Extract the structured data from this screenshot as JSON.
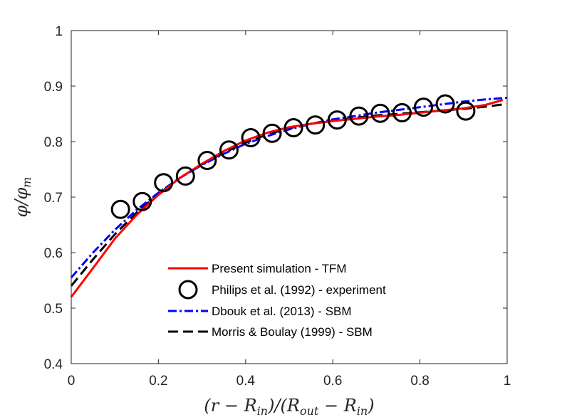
{
  "chart_data": {
    "type": "line",
    "title": "",
    "xlabel": "(r − R_in)/(R_out − R_in)",
    "ylabel": "φ/φ_m",
    "xlim": [
      0,
      1
    ],
    "ylim": [
      0.4,
      1
    ],
    "grid": false,
    "legend_position": "bottom-center",
    "x_ticks": [
      "0",
      "0.2",
      "0.4",
      "0.6",
      "0.8",
      "1"
    ],
    "y_ticks": [
      "0.4",
      "0.5",
      "0.6",
      "0.7",
      "0.8",
      "0.9",
      "1"
    ],
    "series": [
      {
        "name": "Present simulation - TFM",
        "style": "solid",
        "color": "#ff0000",
        "x": [
          0,
          0.05,
          0.1,
          0.15,
          0.2,
          0.25,
          0.3,
          0.35,
          0.4,
          0.45,
          0.5,
          0.55,
          0.6,
          0.65,
          0.7,
          0.75,
          0.8,
          0.85,
          0.9,
          0.95,
          0.99
        ],
        "y": [
          0.52,
          0.572,
          0.625,
          0.668,
          0.704,
          0.735,
          0.76,
          0.783,
          0.802,
          0.816,
          0.826,
          0.832,
          0.837,
          0.841,
          0.845,
          0.848,
          0.852,
          0.856,
          0.86,
          0.866,
          0.875
        ]
      },
      {
        "name": "Philips et al. (1992) - experiment",
        "style": "markers",
        "color": "#000000",
        "marker": "circle",
        "x": [
          0.113,
          0.163,
          0.212,
          0.262,
          0.312,
          0.362,
          0.412,
          0.461,
          0.51,
          0.56,
          0.61,
          0.66,
          0.709,
          0.759,
          0.808,
          0.858,
          0.905
        ],
        "y": [
          0.678,
          0.692,
          0.726,
          0.738,
          0.766,
          0.785,
          0.807,
          0.815,
          0.825,
          0.83,
          0.839,
          0.846,
          0.851,
          0.852,
          0.862,
          0.868,
          0.855
        ]
      },
      {
        "name": "Dbouk et al. (2013) - SBM",
        "style": "dashdot",
        "color": "#0000ff",
        "x": [
          0,
          0.05,
          0.1,
          0.15,
          0.2,
          0.25,
          0.3,
          0.35,
          0.4,
          0.45,
          0.5,
          0.55,
          0.6,
          0.65,
          0.7,
          0.75,
          0.8,
          0.85,
          0.9,
          0.95,
          1.0
        ],
        "y": [
          0.555,
          0.6,
          0.641,
          0.677,
          0.708,
          0.735,
          0.758,
          0.778,
          0.796,
          0.81,
          0.822,
          0.832,
          0.84,
          0.846,
          0.852,
          0.857,
          0.862,
          0.867,
          0.872,
          0.876,
          0.879
        ]
      },
      {
        "name": "Morris & Boulay (1999) - SBM",
        "style": "dashed",
        "color": "#000000",
        "x": [
          0,
          0.05,
          0.1,
          0.15,
          0.2,
          0.25,
          0.3,
          0.35,
          0.4,
          0.45,
          0.5,
          0.55,
          0.6,
          0.65,
          0.7,
          0.75,
          0.8,
          0.85,
          0.9,
          0.95,
          1.0
        ],
        "y": [
          0.54,
          0.588,
          0.633,
          0.672,
          0.706,
          0.735,
          0.759,
          0.78,
          0.798,
          0.813,
          0.824,
          0.832,
          0.838,
          0.843,
          0.847,
          0.85,
          0.853,
          0.856,
          0.859,
          0.863,
          0.868
        ]
      }
    ]
  }
}
